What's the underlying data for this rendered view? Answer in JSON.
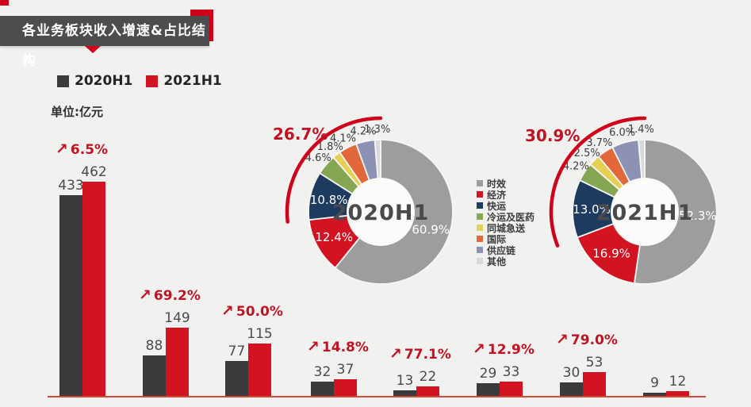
{
  "header": {
    "title": "各业务板块收入增速&占比结构"
  },
  "bar_legend": {
    "items": [
      {
        "label": "2020H1",
        "color": "#3a3a3c"
      },
      {
        "label": "2021H1",
        "color": "#d21322"
      }
    ]
  },
  "unit_label": "单位:亿元",
  "colors": {
    "background": "#f1f1ef",
    "accent_red": "#d0021b",
    "growth_text_red": "#c11224",
    "bar_dark": "#3a3a3c",
    "bar_red": "#d21322",
    "baseline_red": "#d0493b"
  },
  "chart_data": [
    {
      "type": "bar",
      "unit": "亿元",
      "series": [
        {
          "name": "2020H1",
          "color": "#3a3a3c",
          "values": [
            433,
            88,
            77,
            32,
            13,
            29,
            30,
            9
          ]
        },
        {
          "name": "2021H1",
          "color": "#d21322",
          "values": [
            462,
            149,
            115,
            37,
            22,
            33,
            53,
            12
          ]
        }
      ],
      "growth_labels": [
        "6.5%",
        "69.2%",
        "50.0%",
        "14.8%",
        "77.1%",
        "12.9%",
        "79.0%",
        null
      ],
      "ylim": [
        0,
        480
      ],
      "grid": false,
      "legend_position": "top-left"
    },
    {
      "type": "donut",
      "center_label": "2020H1",
      "total_growth": "26.7%",
      "slices": [
        {
          "label": "时效",
          "value": 60.9,
          "color": "#9d9d9d",
          "label_inside": true
        },
        {
          "label": "经济",
          "value": 12.4,
          "color": "#d21322",
          "label_inside": true
        },
        {
          "label": "快运",
          "value": 10.8,
          "color": "#1d3a5f",
          "label_inside": true
        },
        {
          "label": "冷运及医药",
          "value": 4.6,
          "color": "#85a652",
          "label_inside": false
        },
        {
          "label": "同城急送",
          "value": 1.8,
          "color": "#e7cf52",
          "label_inside": false
        },
        {
          "label": "国际",
          "value": 4.1,
          "color": "#e2673b",
          "label_inside": false
        },
        {
          "label": "供应链",
          "value": 4.2,
          "color": "#8d92b5",
          "label_inside": false
        },
        {
          "label": "其他",
          "value": 1.3,
          "color": "#d9d9d9",
          "label_inside": false
        }
      ]
    },
    {
      "type": "donut",
      "center_label": "2021H1",
      "total_growth": "30.9%",
      "slices": [
        {
          "label": "时效",
          "value": 52.3,
          "color": "#9d9d9d",
          "label_inside": true
        },
        {
          "label": "经济",
          "value": 16.9,
          "color": "#d21322",
          "label_inside": true
        },
        {
          "label": "快运",
          "value": 13.0,
          "color": "#1d3a5f",
          "label_inside": true
        },
        {
          "label": "冷运及医药",
          "value": 4.2,
          "color": "#85a652",
          "label_inside": false
        },
        {
          "label": "同城急送",
          "value": 2.5,
          "color": "#e7cf52",
          "label_inside": false
        },
        {
          "label": "国际",
          "value": 3.7,
          "color": "#e2673b",
          "label_inside": false
        },
        {
          "label": "供应链",
          "value": 6.0,
          "color": "#8d92b5",
          "label_inside": false
        },
        {
          "label": "其他",
          "value": 1.4,
          "color": "#d9d9d9",
          "label_inside": false
        }
      ]
    }
  ]
}
